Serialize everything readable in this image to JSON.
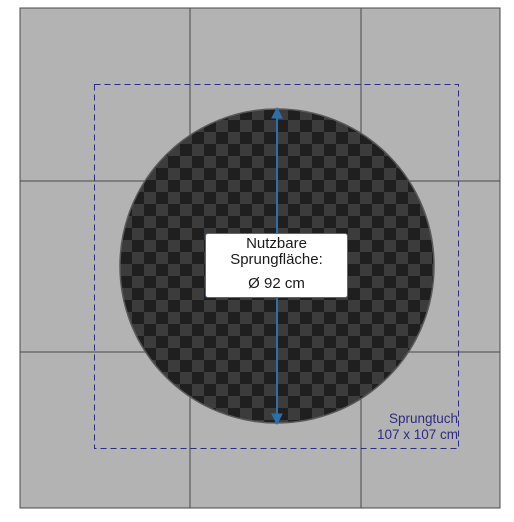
{
  "colors": {
    "floor": "#b3b3b3",
    "grid_line": "#4a4a4a",
    "frame_line": "#4a4a4a",
    "mat_dark": "#1f1f1f",
    "mat_light": "#3c3c3c",
    "mat_edge": "#5a5a5a",
    "dashed_frame": "#2e2b84",
    "arrow": "#2f6fa8"
  },
  "icons": {
    "diameter_arrow": "double-headed-vertical-arrow"
  },
  "jump_area": {
    "line1": "Nutzbare",
    "line2": "Sprungfläche:",
    "line3": "Ø 92 cm"
  },
  "trampoline_bed": {
    "line1": "Sprungtuch",
    "line2": "107 x 107 cm"
  }
}
